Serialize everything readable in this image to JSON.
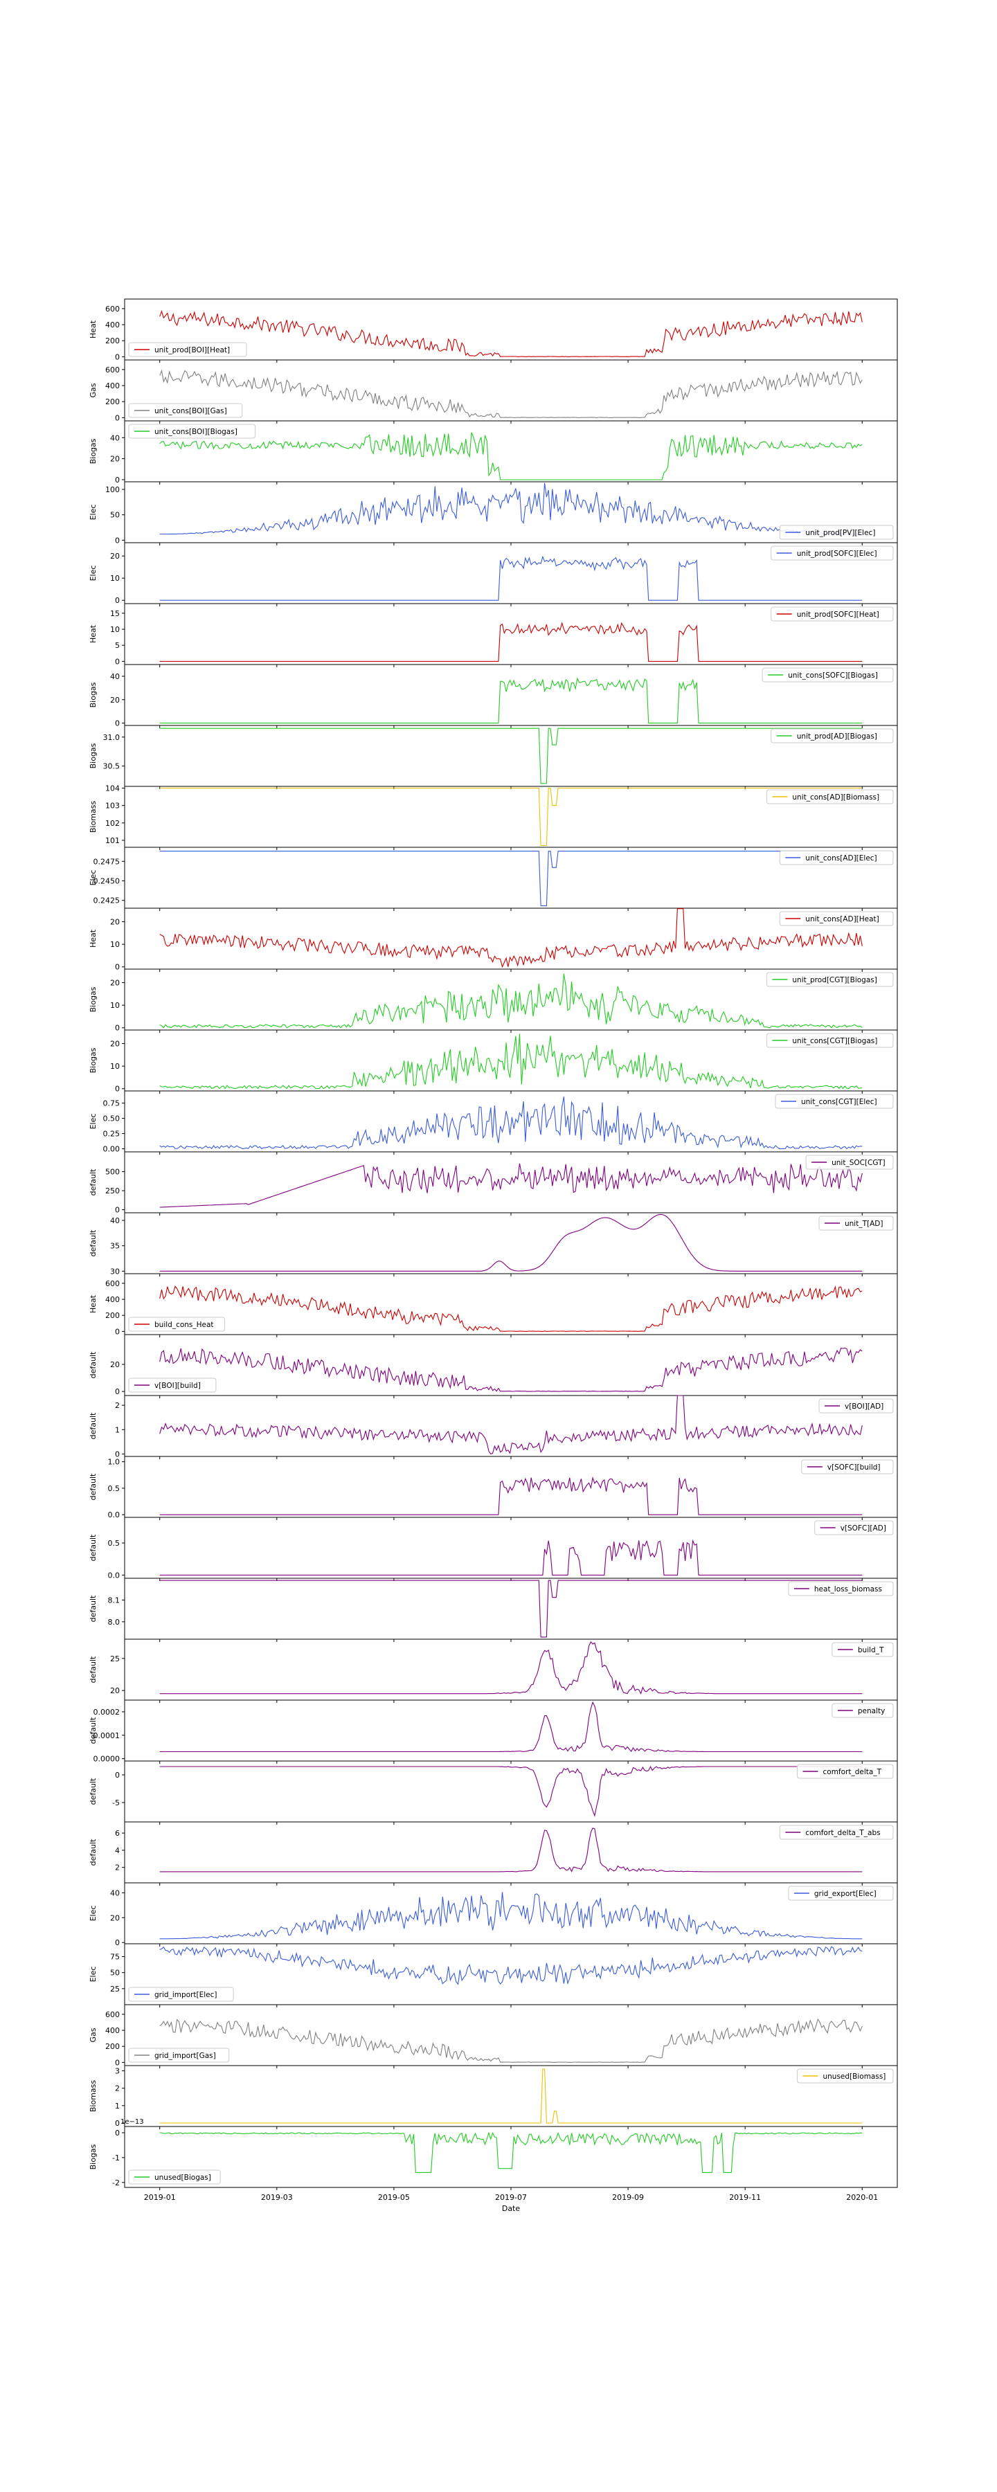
{
  "xaxis": {
    "label": "Date",
    "ticks": [
      "2019-01",
      "2019-03",
      "2019-05",
      "2019-07",
      "2019-09",
      "2019-11",
      "2020-01"
    ],
    "tick_months": [
      0,
      2,
      4,
      6,
      8,
      10,
      12
    ],
    "range_months": [
      -0.6,
      12.6
    ],
    "data_range_months": [
      0,
      12
    ]
  },
  "chart_data": [
    {
      "type": "line",
      "series": [
        {
          "name": "unit_prod[BOI][Heat]"
        }
      ],
      "ylabel": "Heat",
      "yticks": [
        "0",
        "200",
        "400",
        "600"
      ],
      "ytick_values": [
        0,
        200,
        400,
        600
      ],
      "ylim": [
        -40,
        720
      ],
      "legend": "lower-left",
      "color": "#cc0000",
      "profile": "winter",
      "amp": 260,
      "base": 310,
      "noise": 90,
      "zero_summer": true
    },
    {
      "type": "line",
      "series": [
        {
          "name": "unit_cons[BOI][Gas]"
        }
      ],
      "ylabel": "Gas",
      "yticks": [
        "0",
        "200",
        "400",
        "600"
      ],
      "ytick_values": [
        0,
        200,
        400,
        600
      ],
      "ylim": [
        -40,
        720
      ],
      "legend": "lower-left",
      "color": "#808080",
      "profile": "winter",
      "amp": 270,
      "base": 320,
      "noise": 95,
      "zero_summer": true
    },
    {
      "type": "line",
      "series": [
        {
          "name": "unit_cons[BOI][Biogas]"
        }
      ],
      "ylabel": "Biogas",
      "yticks": [
        "0",
        "20",
        "40"
      ],
      "ytick_values": [
        0,
        20,
        40
      ],
      "ylim": [
        -2,
        56
      ],
      "legend": "upper-left",
      "color": "#22cc22",
      "profile": "biogas_boi",
      "amp": 0,
      "base": 33,
      "noise": 6,
      "zero_summer": false
    },
    {
      "type": "line",
      "series": [
        {
          "name": "unit_prod[PV][Elec]"
        }
      ],
      "ylabel": "Elec",
      "yticks": [
        "0",
        "50",
        "100"
      ],
      "ytick_values": [
        0,
        50,
        100
      ],
      "ylim": [
        -5,
        115
      ],
      "legend": "lower-right",
      "color": "#3b5bdb",
      "profile": "summer",
      "amp": 80,
      "base": 12,
      "noise": 30,
      "zero_summer": false
    },
    {
      "type": "line",
      "series": [
        {
          "name": "unit_prod[SOFC][Elec]"
        }
      ],
      "ylabel": "Elec",
      "yticks": [
        "0",
        "10",
        "20"
      ],
      "ytick_values": [
        0,
        10,
        20
      ],
      "ylim": [
        -1.5,
        26
      ],
      "legend": "upper-right",
      "color": "#3b5bdb",
      "profile": "sofc",
      "amp": 18,
      "base": 0,
      "noise": 3,
      "zero_summer": false
    },
    {
      "type": "line",
      "series": [
        {
          "name": "unit_prod[SOFC][Heat]"
        }
      ],
      "ylabel": "Heat",
      "yticks": [
        "0",
        "5",
        "10",
        "15"
      ],
      "ytick_values": [
        0,
        5,
        10,
        15
      ],
      "ylim": [
        -1,
        18
      ],
      "legend": "upper-right",
      "color": "#cc0000",
      "profile": "sofc",
      "amp": 11,
      "base": 0,
      "noise": 2,
      "zero_summer": false
    },
    {
      "type": "line",
      "series": [
        {
          "name": "unit_cons[SOFC][Biogas]"
        }
      ],
      "ylabel": "Biogas",
      "yticks": [
        "0",
        "20",
        "40"
      ],
      "ytick_values": [
        0,
        20,
        40
      ],
      "ylim": [
        -2,
        50
      ],
      "legend": "upper-right",
      "color": "#22cc22",
      "profile": "sofc",
      "amp": 35,
      "base": 0,
      "noise": 6,
      "zero_summer": false
    },
    {
      "type": "line",
      "series": [
        {
          "name": "unit_prod[AD][Biogas]"
        }
      ],
      "ylabel": "Biogas",
      "yticks": [
        "30.5",
        "31.0"
      ],
      "ytick_values": [
        30.5,
        31.0
      ],
      "ylim": [
        30.15,
        31.2
      ],
      "legend": "upper-right",
      "color": "#22cc22",
      "profile": "flat_dip",
      "amp": 0,
      "base": 31.15,
      "noise": 0,
      "zero_summer": false,
      "dip": 30.2
    },
    {
      "type": "line",
      "series": [
        {
          "name": "unit_cons[AD][Biomass]"
        }
      ],
      "ylabel": "Biomass",
      "yticks": [
        "101",
        "102",
        "103",
        "104"
      ],
      "ytick_values": [
        101,
        102,
        103,
        104
      ],
      "ylim": [
        100.6,
        104.1
      ],
      "legend": "upper-right",
      "color": "#f0c000",
      "profile": "flat_dip",
      "amp": 0,
      "base": 104,
      "noise": 0,
      "zero_summer": false,
      "dip": 100.7
    },
    {
      "type": "line",
      "series": [
        {
          "name": "unit_cons[AD][Elec]"
        }
      ],
      "ylabel": "Elec",
      "yticks": [
        "0.2425",
        "0.2450",
        "0.2475"
      ],
      "ytick_values": [
        0.2425,
        0.245,
        0.2475
      ],
      "ylim": [
        0.2415,
        0.2493
      ],
      "legend": "upper-right",
      "color": "#3b5bdb",
      "profile": "flat_dip",
      "amp": 0,
      "base": 0.2488,
      "noise": 0,
      "zero_summer": false,
      "dip": 0.2418
    },
    {
      "type": "line",
      "series": [
        {
          "name": "unit_cons[AD][Heat]"
        }
      ],
      "ylabel": "Heat",
      "yticks": [
        "0",
        "10",
        "20"
      ],
      "ytick_values": [
        0,
        10,
        20
      ],
      "ylim": [
        -1,
        26
      ],
      "legend": "upper-right",
      "color": "#cc0000",
      "profile": "ad_heat",
      "amp": 6,
      "base": 6,
      "noise": 3,
      "zero_summer": false
    },
    {
      "type": "line",
      "series": [
        {
          "name": "unit_prod[CGT][Biogas]"
        }
      ],
      "ylabel": "Biogas",
      "yticks": [
        "0",
        "10",
        "20"
      ],
      "ytick_values": [
        0,
        10,
        20
      ],
      "ylim": [
        -1,
        26
      ],
      "legend": "upper-right",
      "color": "#22cc22",
      "profile": "cgt",
      "amp": 12,
      "base": 0,
      "noise": 6,
      "zero_summer": false
    },
    {
      "type": "line",
      "series": [
        {
          "name": "unit_cons[CGT][Biogas]"
        }
      ],
      "ylabel": "Biogas",
      "yticks": [
        "0",
        "10",
        "20"
      ],
      "ytick_values": [
        0,
        10,
        20
      ],
      "ylim": [
        -1,
        26
      ],
      "legend": "upper-right",
      "color": "#22cc22",
      "profile": "cgt",
      "amp": 12,
      "base": 0,
      "noise": 6,
      "zero_summer": false
    },
    {
      "type": "line",
      "series": [
        {
          "name": "unit_cons[CGT][Elec]"
        }
      ],
      "ylabel": "Elec",
      "yticks": [
        "0.00",
        "0.25",
        "0.50",
        "0.75"
      ],
      "ytick_values": [
        0,
        0.25,
        0.5,
        0.75
      ],
      "ylim": [
        -0.05,
        0.95
      ],
      "legend": "upper-right",
      "color": "#3b5bdb",
      "profile": "cgt",
      "amp": 0.45,
      "base": 0,
      "noise": 0.2,
      "zero_summer": false
    },
    {
      "type": "line",
      "series": [
        {
          "name": "unit_SOC[CGT]"
        }
      ],
      "ylabel": "default",
      "yticks": [
        "0",
        "250",
        "500"
      ],
      "ytick_values": [
        0,
        250,
        500
      ],
      "ylim": [
        -40,
        760
      ],
      "legend": "upper-right",
      "color": "#800080",
      "profile": "soc",
      "amp": 650,
      "base": 0,
      "noise": 100,
      "zero_summer": false
    },
    {
      "type": "line",
      "series": [
        {
          "name": "unit_T[AD]"
        }
      ],
      "ylabel": "default",
      "yticks": [
        "30",
        "35",
        "40"
      ],
      "ytick_values": [
        30,
        35,
        40
      ],
      "ylim": [
        29.5,
        41.5
      ],
      "legend": "upper-right",
      "color": "#800080",
      "profile": "ad_temp",
      "amp": 11,
      "base": 30,
      "noise": 0,
      "zero_summer": false
    },
    {
      "type": "line",
      "series": [
        {
          "name": "build_cons_Heat"
        }
      ],
      "ylabel": "Heat",
      "yticks": [
        "0",
        "200",
        "400",
        "600"
      ],
      "ytick_values": [
        0,
        200,
        400,
        600
      ],
      "ylim": [
        -40,
        720
      ],
      "legend": "lower-left",
      "color": "#cc0000",
      "profile": "winter",
      "amp": 260,
      "base": 310,
      "noise": 90,
      "zero_summer": true
    },
    {
      "type": "line",
      "series": [
        {
          "name": "v[BOI][build]"
        }
      ],
      "ylabel": "default",
      "yticks": [
        "0",
        "20"
      ],
      "ytick_values": [
        0,
        20
      ],
      "ylim": [
        -3,
        42
      ],
      "legend": "lower-left",
      "color": "#800080",
      "profile": "winter",
      "amp": 15,
      "base": 17,
      "noise": 6,
      "zero_summer": true
    },
    {
      "type": "line",
      "series": [
        {
          "name": "v[BOI][AD]"
        }
      ],
      "ylabel": "default",
      "yticks": [
        "0",
        "1",
        "2"
      ],
      "ytick_values": [
        0,
        1,
        2
      ],
      "ylim": [
        -0.1,
        2.4
      ],
      "legend": "upper-right",
      "color": "#800080",
      "profile": "ad_heat",
      "amp": 0.3,
      "base": 0.7,
      "noise": 0.25,
      "zero_summer": false
    },
    {
      "type": "line",
      "series": [
        {
          "name": "v[SOFC][build]"
        }
      ],
      "ylabel": "default",
      "yticks": [
        "0.0",
        "0.5",
        "1.0"
      ],
      "ytick_values": [
        0,
        0.5,
        1.0
      ],
      "ylim": [
        -0.05,
        1.1
      ],
      "legend": "upper-right",
      "color": "#800080",
      "profile": "sofc_v",
      "amp": 0.6,
      "base": 0,
      "noise": 0.2,
      "zero_summer": false
    },
    {
      "type": "line",
      "series": [
        {
          "name": "v[SOFC][AD]"
        }
      ],
      "ylabel": "default",
      "yticks": [
        "0.0",
        "0.5"
      ],
      "ytick_values": [
        0,
        0.5
      ],
      "ylim": [
        -0.05,
        0.9
      ],
      "legend": "upper-right",
      "color": "#800080",
      "profile": "sofc_v2",
      "amp": 0.55,
      "base": 0,
      "noise": 0.2,
      "zero_summer": false
    },
    {
      "type": "line",
      "series": [
        {
          "name": "heat_loss_biomass"
        }
      ],
      "ylabel": "default",
      "yticks": [
        "8.0",
        "8.1"
      ],
      "ytick_values": [
        8.0,
        8.1
      ],
      "ylim": [
        7.92,
        8.2
      ],
      "legend": "upper-right",
      "color": "#800080",
      "profile": "flat_dip",
      "amp": 0,
      "base": 8.19,
      "noise": 0,
      "zero_summer": false,
      "dip": 7.93
    },
    {
      "type": "line",
      "series": [
        {
          "name": "build_T"
        }
      ],
      "ylabel": "default",
      "yticks": [
        "20",
        "25"
      ],
      "ytick_values": [
        20,
        25
      ],
      "ylim": [
        18.5,
        28
      ],
      "legend": "upper-right",
      "color": "#800080",
      "profile": "build_t",
      "amp": 7,
      "base": 19.5,
      "noise": 1,
      "zero_summer": false
    },
    {
      "type": "line",
      "series": [
        {
          "name": "penalty"
        }
      ],
      "ylabel": "default",
      "yticks": [
        "0.0000",
        "0.0001",
        "0.0002"
      ],
      "ytick_values": [
        0,
        0.0001,
        0.0002
      ],
      "ylim": [
        -1e-05,
        0.00025
      ],
      "legend": "upper-right",
      "color": "#800080",
      "profile": "penalty",
      "amp": 0.0002,
      "base": 3e-05,
      "noise": 3e-05,
      "zero_summer": false
    },
    {
      "type": "line",
      "series": [
        {
          "name": "comfort_delta_T"
        }
      ],
      "ylabel": "default",
      "yticks": [
        "-5",
        "0"
      ],
      "ytick_values": [
        -5,
        0
      ],
      "ylim": [
        -8.5,
        2.5
      ],
      "legend": "upper-right",
      "color": "#800080",
      "profile": "comfort_neg",
      "amp": 7.5,
      "base": 1.5,
      "noise": 1,
      "zero_summer": false
    },
    {
      "type": "line",
      "series": [
        {
          "name": "comfort_delta_T_abs"
        }
      ],
      "ylabel": "default",
      "yticks": [
        "2",
        "4",
        "6"
      ],
      "ytick_values": [
        2,
        4,
        6
      ],
      "ylim": [
        0.2,
        7.3
      ],
      "legend": "upper-right",
      "color": "#800080",
      "profile": "comfort_pos",
      "amp": 5,
      "base": 1.5,
      "noise": 0.8,
      "zero_summer": false
    },
    {
      "type": "line",
      "series": [
        {
          "name": "grid_export[Elec]"
        }
      ],
      "ylabel": "Elec",
      "yticks": [
        "0",
        "20",
        "40"
      ],
      "ytick_values": [
        0,
        20,
        40
      ],
      "ylim": [
        -1,
        48
      ],
      "legend": "upper-right",
      "color": "#3b5bdb",
      "profile": "summer",
      "amp": 30,
      "base": 3,
      "noise": 12,
      "zero_summer": false
    },
    {
      "type": "line",
      "series": [
        {
          "name": "grid_import[Elec]"
        }
      ],
      "ylabel": "Elec",
      "yticks": [
        "25",
        "50",
        "75"
      ],
      "ytick_values": [
        25,
        50,
        75
      ],
      "ylim": [
        0,
        95
      ],
      "legend": "lower-left",
      "color": "#3b5bdb",
      "profile": "import",
      "amp": 55,
      "base": 85,
      "noise": 15,
      "zero_summer": false
    },
    {
      "type": "line",
      "series": [
        {
          "name": "grid_import[Gas]"
        }
      ],
      "ylabel": "Gas",
      "yticks": [
        "0",
        "200",
        "400",
        "600"
      ],
      "ytick_values": [
        0,
        200,
        400,
        600
      ],
      "ylim": [
        -40,
        720
      ],
      "legend": "lower-left",
      "color": "#808080",
      "profile": "winter",
      "amp": 260,
      "base": 300,
      "noise": 90,
      "zero_summer": true
    },
    {
      "type": "line",
      "series": [
        {
          "name": "unused[Biomass]"
        }
      ],
      "ylabel": "Biomass",
      "yticks": [
        "0",
        "1",
        "2",
        "3"
      ],
      "ytick_values": [
        0,
        1,
        2,
        3
      ],
      "ylim": [
        -0.2,
        3.3
      ],
      "legend": "upper-right",
      "color": "#f0c000",
      "profile": "spike",
      "amp": 3.1,
      "base": 0,
      "noise": 0,
      "zero_summer": false
    },
    {
      "type": "line",
      "series": [
        {
          "name": "unused[Biogas]"
        }
      ],
      "ylabel": "Biogas",
      "yticks": [
        "-2",
        "-1",
        "0"
      ],
      "ytick_values": [
        -2,
        -1,
        0
      ],
      "ylim": [
        -2.2,
        0.25
      ],
      "legend": "lower-left",
      "color": "#22cc22",
      "profile": "unused_biogas",
      "amp": 1.6,
      "base": 0,
      "noise": 0.25,
      "zero_summer": false,
      "offset_label": "1e−13"
    }
  ]
}
